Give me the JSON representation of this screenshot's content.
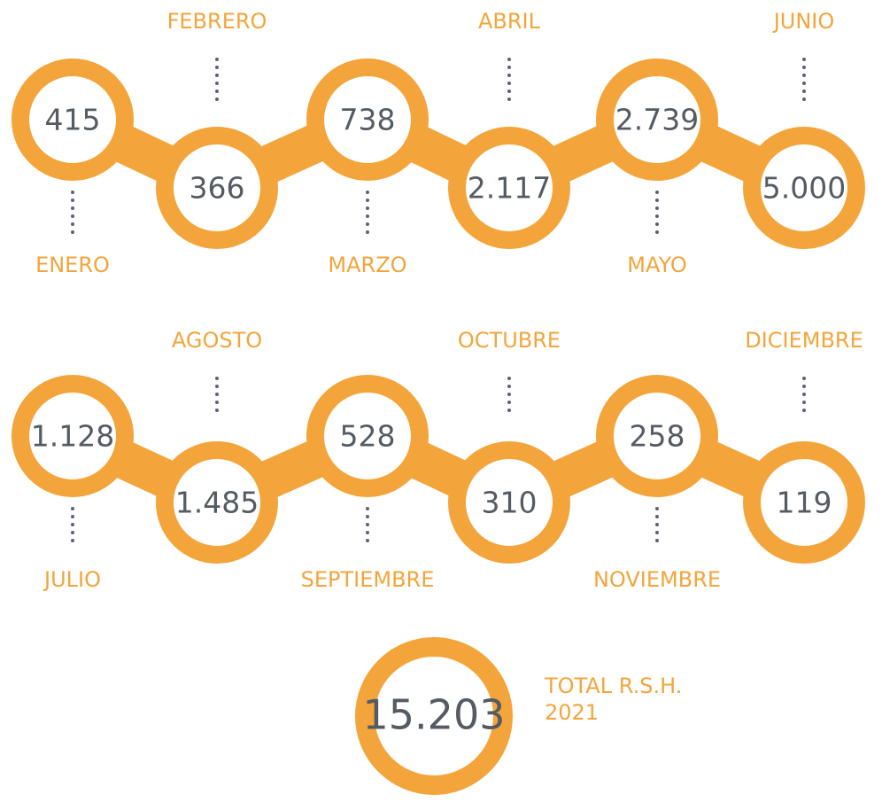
{
  "months": [
    {
      "label": "ENERO",
      "value": "415"
    },
    {
      "label": "FEBRERO",
      "value": "366"
    },
    {
      "label": "MARZO",
      "value": "738"
    },
    {
      "label": "ABRIL",
      "value": "2.117"
    },
    {
      "label": "MAYO",
      "value": "2.739"
    },
    {
      "label": "JUNIO",
      "value": "5.000"
    },
    {
      "label": "JULIO",
      "value": "1.128"
    },
    {
      "label": "AGOSTO",
      "value": "1.485"
    },
    {
      "label": "SEPTIEMBRE",
      "value": "528"
    },
    {
      "label": "OCTUBRE",
      "value": "310"
    },
    {
      "label": "NOVIEMBRE",
      "value": "258"
    },
    {
      "label": "DICIEMBRE",
      "value": "119"
    }
  ],
  "total": {
    "value": "15.203",
    "label": [
      "TOTAL R.S.H.",
      "2021"
    ]
  }
}
